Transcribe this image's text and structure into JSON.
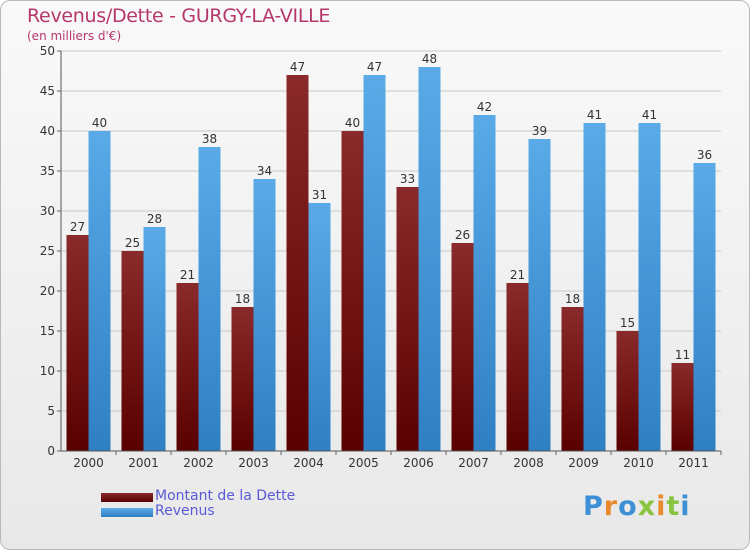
{
  "title": "Revenus/Dette - GURGY-LA-VILLE",
  "subtitle": "(en milliers d'€)",
  "logo": "Proxiti",
  "colors": {
    "dette_top": "#8a2a2a",
    "dette_bottom": "#5a0000",
    "revenus_top": "#5aaae8",
    "revenus_bottom": "#2f7fc3",
    "grid": "#c8c8c8",
    "axis_text": "#333333"
  },
  "chart_data": {
    "type": "bar",
    "categories": [
      "2000",
      "2001",
      "2002",
      "2003",
      "2004",
      "2005",
      "2006",
      "2007",
      "2008",
      "2009",
      "2010",
      "2011"
    ],
    "series": [
      {
        "name": "Montant de la Dette",
        "values": [
          27,
          25,
          21,
          18,
          47,
          40,
          33,
          26,
          21,
          18,
          15,
          11
        ]
      },
      {
        "name": "Revenus",
        "values": [
          40,
          28,
          38,
          34,
          31,
          47,
          48,
          42,
          39,
          41,
          41,
          36
        ]
      }
    ],
    "title": "Revenus/Dette - GURGY-LA-VILLE",
    "subtitle": "(en milliers d'€)",
    "ylim": [
      0,
      50
    ],
    "yticks": [
      0,
      5,
      10,
      15,
      20,
      25,
      30,
      35,
      40,
      45,
      50
    ],
    "grid": true,
    "legend_position": "bottom-left"
  }
}
